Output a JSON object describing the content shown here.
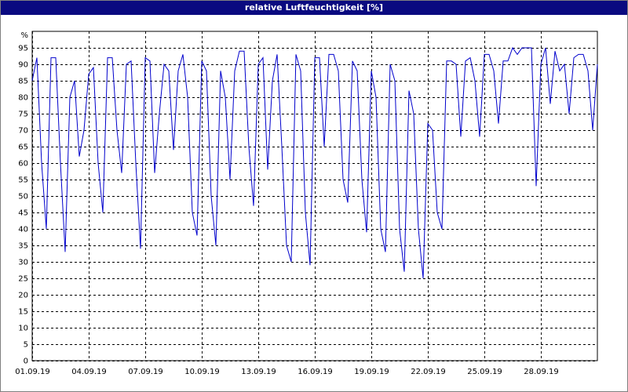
{
  "chart_data": {
    "type": "line",
    "title": "relative Luftfeuchtigkeit [%]",
    "y_unit": "%",
    "xlim": [
      0,
      30
    ],
    "ylim": [
      0,
      100
    ],
    "xticks": [
      {
        "value": 0,
        "label": "01.09.19"
      },
      {
        "value": 3,
        "label": "04.09.19"
      },
      {
        "value": 6,
        "label": "07.09.19"
      },
      {
        "value": 9,
        "label": "10.09.19"
      },
      {
        "value": 12,
        "label": "13.09.19"
      },
      {
        "value": 15,
        "label": "16.09.19"
      },
      {
        "value": 18,
        "label": "19.09.19"
      },
      {
        "value": 21,
        "label": "22.09.19"
      },
      {
        "value": 24,
        "label": "25.09.19"
      },
      {
        "value": 27,
        "label": "28.09.19"
      }
    ],
    "yticks": [
      0,
      5,
      10,
      15,
      20,
      25,
      30,
      35,
      40,
      45,
      50,
      55,
      60,
      65,
      70,
      75,
      80,
      85,
      90,
      95
    ],
    "grid": true,
    "x": [
      0,
      0.25,
      0.5,
      0.75,
      1,
      1.25,
      1.5,
      1.75,
      2,
      2.25,
      2.5,
      2.75,
      3,
      3.25,
      3.5,
      3.75,
      4,
      4.25,
      4.5,
      4.75,
      5,
      5.25,
      5.5,
      5.75,
      6,
      6.25,
      6.5,
      6.75,
      7,
      7.25,
      7.5,
      7.75,
      8,
      8.25,
      8.5,
      8.75,
      9,
      9.25,
      9.5,
      9.75,
      10,
      10.25,
      10.5,
      10.75,
      11,
      11.25,
      11.5,
      11.75,
      12,
      12.25,
      12.5,
      12.75,
      13,
      13.25,
      13.5,
      13.75,
      14,
      14.25,
      14.5,
      14.75,
      15,
      15.25,
      15.5,
      15.75,
      16,
      16.25,
      16.5,
      16.75,
      17,
      17.25,
      17.5,
      17.75,
      18,
      18.25,
      18.5,
      18.75,
      19,
      19.25,
      19.5,
      19.75,
      20,
      20.25,
      20.5,
      20.75,
      21,
      21.25,
      21.5,
      21.75,
      22,
      22.25,
      22.5,
      22.75,
      23,
      23.25,
      23.5,
      23.75,
      24,
      24.25,
      24.5,
      24.75,
      25,
      25.25,
      25.5,
      25.75,
      26,
      26.25,
      26.5,
      26.75,
      27,
      27.25,
      27.5,
      27.75,
      28,
      28.25,
      28.5,
      28.75,
      29,
      29.25,
      29.5,
      29.75,
      30
    ],
    "series": [
      {
        "color": "#0000cc",
        "values": [
          85,
          92,
          60,
          40,
          92,
          92,
          60,
          33,
          80,
          85,
          62,
          70,
          87,
          89,
          60,
          45,
          92,
          92,
          70,
          57,
          90,
          91,
          60,
          34,
          92,
          91,
          57,
          75,
          90,
          88,
          64,
          88,
          93,
          80,
          45,
          38,
          91,
          88,
          50,
          35,
          88,
          80,
          55,
          88,
          94,
          94,
          65,
          47,
          90,
          92,
          58,
          85,
          93,
          65,
          35,
          30,
          93,
          88,
          45,
          29,
          92,
          92,
          65,
          93,
          93,
          88,
          55,
          48,
          91,
          88,
          55,
          39,
          88,
          80,
          40,
          33,
          90,
          85,
          40,
          27,
          82,
          75,
          40,
          25,
          72,
          70,
          45,
          40,
          91,
          91,
          90,
          68,
          91,
          92,
          85,
          68,
          93,
          93,
          88,
          72,
          91,
          91,
          95,
          93,
          95,
          95,
          95,
          53,
          90,
          95,
          78,
          94,
          88,
          90,
          75,
          92,
          93,
          93,
          88,
          70,
          90
        ]
      }
    ]
  }
}
